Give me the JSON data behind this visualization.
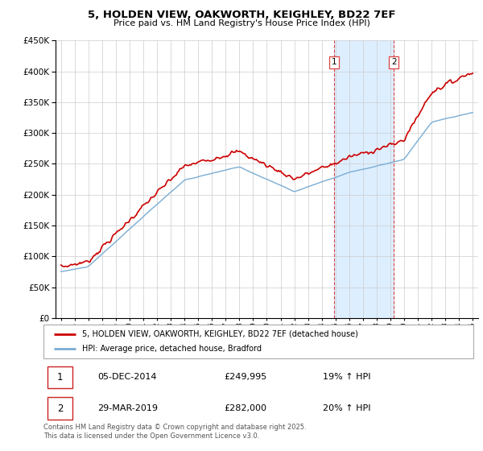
{
  "title_line1": "5, HOLDEN VIEW, OAKWORTH, KEIGHLEY, BD22 7EF",
  "title_line2": "Price paid vs. HM Land Registry's House Price Index (HPI)",
  "legend_line1": "5, HOLDEN VIEW, OAKWORTH, KEIGHLEY, BD22 7EF (detached house)",
  "legend_line2": "HPI: Average price, detached house, Bradford",
  "annotation1_label": "1",
  "annotation1_date": "05-DEC-2014",
  "annotation1_price": "£249,995",
  "annotation1_hpi": "19% ↑ HPI",
  "annotation2_label": "2",
  "annotation2_date": "29-MAR-2019",
  "annotation2_price": "£282,000",
  "annotation2_hpi": "20% ↑ HPI",
  "footer": "Contains HM Land Registry data © Crown copyright and database right 2025.\nThis data is licensed under the Open Government Licence v3.0.",
  "ylim": [
    0,
    450000
  ],
  "sale1_year": 2014.92,
  "sale1_price": 249995,
  "sale2_year": 2019.25,
  "sale2_price": 282000,
  "red_line_color": "#cc0000",
  "blue_line_color": "#7aadd4",
  "shade_color": "#ddeeff",
  "annotation_vline_color": "#dd4444",
  "background_color": "#ffffff",
  "grid_color": "#cccccc",
  "xstart": 1995,
  "xend": 2025
}
